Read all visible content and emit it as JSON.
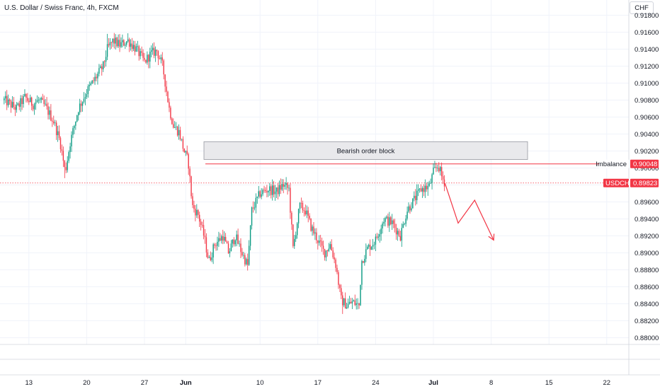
{
  "header": {
    "title": "U.S. Dollar / Swiss Franc, 4h, FXCM",
    "currency_button": "CHF"
  },
  "colors": {
    "up": "#089981",
    "down": "#f23645",
    "box_fill": "#e9e9ec",
    "grid": "#f0f3fa"
  },
  "annotations": {
    "order_block": {
      "label": "Bearish order block",
      "top": 0.9031,
      "bottom": 0.901
    },
    "imbalance": {
      "label": "Imbalance",
      "price_label": "0.90048",
      "price": 0.90048
    },
    "current": {
      "label": "USDCHF",
      "price_label": "0.89823",
      "price": 0.89823
    }
  },
  "chart_data": {
    "type": "candlestick",
    "title": "U.S. Dollar / Swiss Franc, 4h, FXCM",
    "symbol": "USDCHF",
    "ylim": [
      0.8785,
      0.9175
    ],
    "y_ticks": [
      "0.91600",
      "0.91400",
      "0.91200",
      "0.91000",
      "0.90800",
      "0.90600",
      "0.90400",
      "0.90200",
      "0.90000",
      "0.89600",
      "0.89400",
      "0.89200",
      "0.89000",
      "0.88800",
      "0.88600",
      "0.88400",
      "0.88200",
      "0.88000"
    ],
    "y_partial_top": "0.91800",
    "x_ticks": [
      {
        "label": "13",
        "bold": false
      },
      {
        "label": "20",
        "bold": false
      },
      {
        "label": "27",
        "bold": false
      },
      {
        "label": "Jun",
        "bold": true
      },
      {
        "label": "10",
        "bold": false
      },
      {
        "label": "17",
        "bold": false
      },
      {
        "label": "24",
        "bold": false
      },
      {
        "label": "Jul",
        "bold": true
      },
      {
        "label": "8",
        "bold": false
      },
      {
        "label": "15",
        "bold": false
      },
      {
        "label": "22",
        "bold": false
      }
    ],
    "x_day_range": [
      11.5,
      72.5
    ],
    "x_tick_days": [
      13,
      20,
      27,
      32,
      41,
      48,
      55,
      62,
      69,
      76,
      83
    ],
    "grid": true,
    "close_path": [
      [
        10.0,
        0.908
      ],
      [
        11.5,
        0.907
      ],
      [
        12.5,
        0.9083
      ],
      [
        13.5,
        0.9075
      ],
      [
        14.2,
        0.908
      ],
      [
        15.0,
        0.9072
      ],
      [
        16.0,
        0.9055
      ],
      [
        16.8,
        0.903
      ],
      [
        17.4,
        0.8995
      ],
      [
        18.0,
        0.903
      ],
      [
        19.0,
        0.907
      ],
      [
        20.0,
        0.909
      ],
      [
        21.0,
        0.9105
      ],
      [
        22.0,
        0.912
      ],
      [
        22.5,
        0.914
      ],
      [
        23.2,
        0.915
      ],
      [
        24.0,
        0.9145
      ],
      [
        25.0,
        0.915
      ],
      [
        26.0,
        0.914
      ],
      [
        27.0,
        0.9125
      ],
      [
        27.8,
        0.9135
      ],
      [
        28.5,
        0.9138
      ],
      [
        29.2,
        0.912
      ],
      [
        30.0,
        0.907
      ],
      [
        30.5,
        0.905
      ],
      [
        31.2,
        0.9042
      ],
      [
        31.8,
        0.902
      ],
      [
        32.3,
        0.9008
      ],
      [
        32.8,
        0.8955
      ],
      [
        33.5,
        0.8945
      ],
      [
        34.2,
        0.892
      ],
      [
        34.8,
        0.889
      ],
      [
        35.5,
        0.891
      ],
      [
        36.5,
        0.892
      ],
      [
        37.2,
        0.89
      ],
      [
        38.0,
        0.892
      ],
      [
        38.8,
        0.89
      ],
      [
        39.5,
        0.8885
      ],
      [
        40.0,
        0.895
      ],
      [
        41.0,
        0.897
      ],
      [
        42.0,
        0.8975
      ],
      [
        43.0,
        0.8972
      ],
      [
        43.8,
        0.898
      ],
      [
        44.5,
        0.8975
      ],
      [
        45.0,
        0.8905
      ],
      [
        45.8,
        0.8955
      ],
      [
        46.5,
        0.895
      ],
      [
        47.2,
        0.893
      ],
      [
        48.0,
        0.8915
      ],
      [
        48.8,
        0.89
      ],
      [
        49.5,
        0.891
      ],
      [
        50.2,
        0.8885
      ],
      [
        50.8,
        0.8845
      ],
      [
        51.5,
        0.8838
      ],
      [
        52.2,
        0.8842
      ],
      [
        53.0,
        0.8838
      ],
      [
        53.3,
        0.889
      ],
      [
        54.0,
        0.8905
      ],
      [
        55.0,
        0.8915
      ],
      [
        56.0,
        0.894
      ],
      [
        57.0,
        0.8935
      ],
      [
        58.0,
        0.892
      ],
      [
        58.8,
        0.895
      ],
      [
        59.5,
        0.896
      ],
      [
        60.5,
        0.8975
      ],
      [
        61.5,
        0.8978
      ],
      [
        62.0,
        0.8995
      ],
      [
        62.6,
        0.9003
      ],
      [
        63.0,
        0.899
      ],
      [
        63.4,
        0.8982
      ]
    ],
    "wick_extremes": [
      {
        "date": "May 16",
        "low": 0.8988
      },
      {
        "date": "May 22",
        "high": 0.9158
      },
      {
        "date": "Jun 19",
        "low": 0.8828
      },
      {
        "date": "Jun 28",
        "high": 0.9007
      }
    ],
    "projection": [
      [
        63.4,
        0.8982
      ],
      [
        65.0,
        0.8935
      ],
      [
        67.0,
        0.8962
      ],
      [
        69.3,
        0.8915
      ]
    ]
  }
}
